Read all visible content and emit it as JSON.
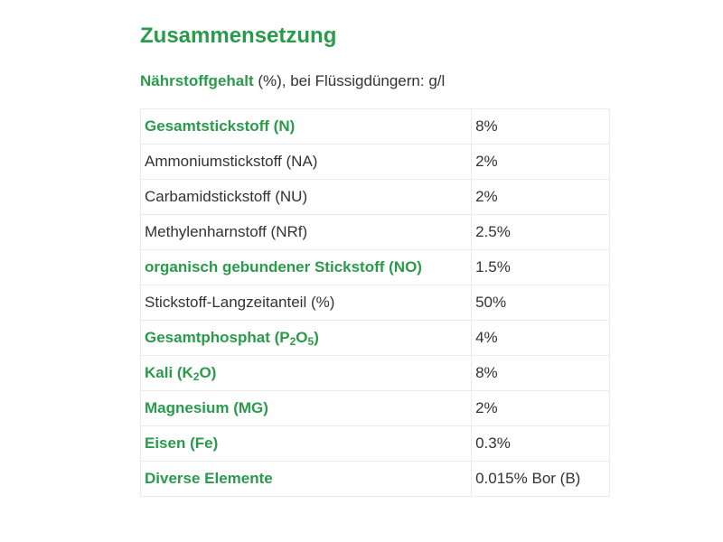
{
  "heading": "Zusammensetzung",
  "subtitle": {
    "strong": "Nährstoffgehalt",
    "rest": " (%), bei Flüssigdüngern: g/l"
  },
  "colors": {
    "accent": "#2a9a4b",
    "text": "#333333",
    "border": "#ebebeb"
  },
  "rows": [
    {
      "label": "Gesamtstickstoff (N)",
      "value": "8%",
      "highlight": true
    },
    {
      "label": "Ammoniumstickstoff (NA)",
      "value": "2%",
      "highlight": false
    },
    {
      "label": "Carbamidstickstoff (NU)",
      "value": "2%",
      "highlight": false
    },
    {
      "label": "Methylenharnstoff (NRf)",
      "value": "2.5%",
      "highlight": false
    },
    {
      "label": "organisch gebundener Stickstoff (NO)",
      "value": "1.5%",
      "highlight": true
    },
    {
      "label": "Stickstoff-Langzeitanteil (%)",
      "value": "50%",
      "highlight": false
    },
    {
      "label_parts": [
        "Gesamtphosphat (P",
        "2",
        "O",
        "5",
        ")"
      ],
      "value": "4%",
      "highlight": true
    },
    {
      "label_parts": [
        "Kali (K",
        "2",
        "O)"
      ],
      "value": "8%",
      "highlight": true
    },
    {
      "label": "Magnesium (MG)",
      "value": "2%",
      "highlight": true
    },
    {
      "label": "Eisen (Fe)",
      "value": "0.3%",
      "highlight": true
    },
    {
      "label": "Diverse Elemente",
      "value": "0.015% Bor (B)",
      "highlight": true
    }
  ]
}
